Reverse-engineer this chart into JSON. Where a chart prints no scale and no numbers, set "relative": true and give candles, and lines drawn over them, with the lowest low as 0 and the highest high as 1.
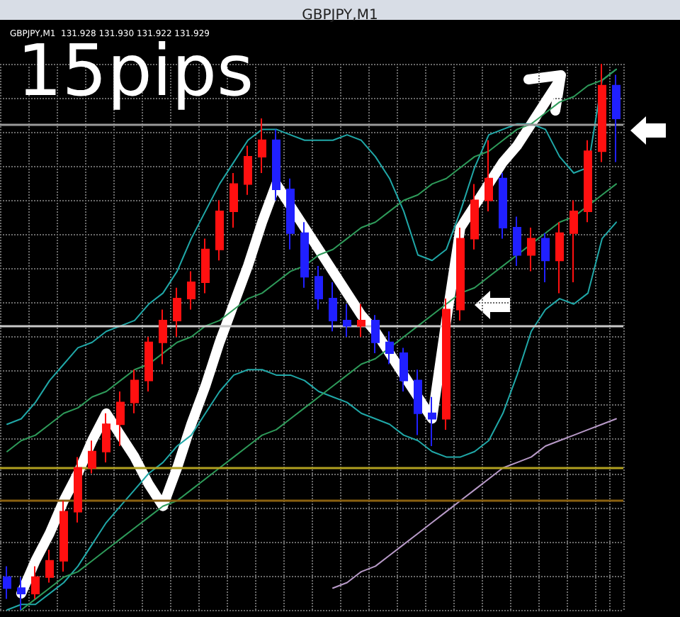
{
  "chart_data": {
    "type": "candlestick",
    "title": "GBPJPY,M1",
    "subtitle": "GBPJPY,M1  131.928 131.930 131.922 131.929",
    "annotations": [
      "15pips"
    ],
    "relative": true,
    "grid": true,
    "marker": "none",
    "categories": [
      null,
      null,
      null,
      null,
      null,
      null,
      null,
      null,
      null,
      null,
      null,
      null,
      null,
      null,
      null,
      null,
      null,
      null,
      null,
      null,
      null,
      null,
      null,
      null,
      null,
      null,
      null,
      null,
      null,
      null,
      null,
      null,
      null,
      null,
      null,
      null,
      null,
      null,
      null,
      null,
      null,
      null,
      null,
      null
    ],
    "ohlc": [
      [
        0.06,
        0.08,
        0.02,
        0.04
      ],
      [
        0.04,
        0.06,
        0,
        0.03
      ],
      [
        0.03,
        0.08,
        0.02,
        0.06
      ],
      [
        0.06,
        0.11,
        0.05,
        0.09
      ],
      [
        0.09,
        0.2,
        0.07,
        0.18
      ],
      [
        0.18,
        0.28,
        0.16,
        0.26
      ],
      [
        0.26,
        0.31,
        0.25,
        0.29
      ],
      [
        0.29,
        0.36,
        0.27,
        0.34
      ],
      [
        0.34,
        0.4,
        0.3,
        0.38
      ],
      [
        0.38,
        0.44,
        0.36,
        0.42
      ],
      [
        0.42,
        0.5,
        0.4,
        0.49
      ],
      [
        0.49,
        0.55,
        0.45,
        0.53
      ],
      [
        0.53,
        0.59,
        0.5,
        0.57
      ],
      [
        0.57,
        0.62,
        0.55,
        0.6
      ],
      [
        0.6,
        0.68,
        0.58,
        0.66
      ],
      [
        0.66,
        0.75,
        0.64,
        0.73
      ],
      [
        0.73,
        0.8,
        0.7,
        0.78
      ],
      [
        0.78,
        0.85,
        0.76,
        0.83
      ],
      [
        0.83,
        0.9,
        0.8,
        0.86
      ],
      [
        0.86,
        0.88,
        0.75,
        0.77
      ],
      [
        0.77,
        0.79,
        0.66,
        0.69
      ],
      [
        0.69,
        0.71,
        0.59,
        0.61
      ],
      [
        0.61,
        0.63,
        0.55,
        0.57
      ],
      [
        0.57,
        0.6,
        0.51,
        0.53
      ],
      [
        0.53,
        0.56,
        0.5,
        0.52
      ],
      [
        0.52,
        0.56,
        0.5,
        0.53
      ],
      [
        0.53,
        0.54,
        0.47,
        0.49
      ],
      [
        0.49,
        0.51,
        0.45,
        0.47
      ],
      [
        0.47,
        0.48,
        0.4,
        0.42
      ],
      [
        0.42,
        0.44,
        0.32,
        0.36
      ],
      [
        0.36,
        0.39,
        0.3,
        0.35
      ],
      [
        0.35,
        0.57,
        0.33,
        0.55
      ],
      [
        0.55,
        0.7,
        0.53,
        0.68
      ],
      [
        0.68,
        0.78,
        0.66,
        0.75
      ],
      [
        0.75,
        0.86,
        0.73,
        0.79
      ],
      [
        0.79,
        0.8,
        0.68,
        0.7
      ],
      [
        0.7,
        0.72,
        0.63,
        0.65
      ],
      [
        0.65,
        0.7,
        0.62,
        0.68
      ],
      [
        0.68,
        0.69,
        0.6,
        0.64
      ],
      [
        0.64,
        0.71,
        0.58,
        0.69
      ],
      [
        0.69,
        0.75,
        0.6,
        0.73
      ],
      [
        0.73,
        0.86,
        0.71,
        0.84
      ],
      [
        0.84,
        1,
        0.82,
        0.96
      ],
      [
        0.96,
        0.98,
        0.82,
        0.9
      ]
    ],
    "colors": [
      "#2020ff",
      "#2020ff",
      "#ff1010",
      "#ff1010",
      "#ff1010",
      "#ff1010",
      "#ff1010",
      "#ff1010",
      "#ff1010",
      "#ff1010",
      "#ff1010",
      "#ff1010",
      "#ff1010",
      "#ff1010",
      "#ff1010",
      "#ff1010",
      "#ff1010",
      "#ff1010",
      "#ff1010",
      "#2020ff",
      "#2020ff",
      "#2020ff",
      "#2020ff",
      "#2020ff",
      "#2020ff",
      "#ff1010",
      "#2020ff",
      "#2020ff",
      "#2020ff",
      "#2020ff",
      "#2020ff",
      "#ff1010",
      "#ff1010",
      "#ff1010",
      "#ff1010",
      "#2020ff",
      "#2020ff",
      "#ff1010",
      "#2020ff",
      "#ff1010",
      "#ff1010",
      "#ff1010",
      "#ff1010",
      "#2020ff"
    ],
    "series": [
      {
        "type": "line",
        "color": "#20a8a8",
        "values": [
          0.34,
          0.35,
          0.38,
          0.42,
          0.45,
          0.48,
          0.49,
          0.51,
          0.52,
          0.53,
          0.56,
          0.58,
          0.62,
          0.68,
          0.73,
          0.78,
          0.82,
          0.86,
          0.88,
          0.88,
          0.87,
          0.86,
          0.86,
          0.86,
          0.87,
          0.86,
          0.83,
          0.79,
          0.73,
          0.65,
          0.64,
          0.66,
          0.73,
          0.81,
          0.87,
          0.88,
          0.89,
          0.89,
          0.88,
          0.83,
          0.8,
          0.81,
          0.97,
          0.99
        ]
      },
      {
        "type": "line",
        "color": "#20a8a8",
        "values": [
          0,
          0.01,
          0.01,
          0.03,
          0.05,
          0.08,
          0.12,
          0.16,
          0.19,
          0.22,
          0.25,
          0.27,
          0.3,
          0.32,
          0.36,
          0.4,
          0.43,
          0.44,
          0.44,
          0.43,
          0.43,
          0.42,
          0.4,
          0.39,
          0.38,
          0.36,
          0.35,
          0.34,
          0.32,
          0.31,
          0.29,
          0.28,
          0.28,
          0.29,
          0.31,
          0.36,
          0.43,
          0.51,
          0.55,
          0.57,
          0.56,
          0.58,
          0.68,
          0.71
        ]
      },
      {
        "type": "line",
        "color": "#b89ac8",
        "values": [
          null,
          null,
          null,
          null,
          null,
          null,
          null,
          null,
          null,
          null,
          null,
          null,
          null,
          null,
          null,
          null,
          null,
          null,
          null,
          null,
          null,
          null,
          null,
          0.04,
          0.05,
          0.07,
          0.08,
          0.1,
          0.12,
          0.14,
          0.16,
          0.18,
          0.2,
          0.22,
          0.24,
          0.26,
          0.27,
          0.28,
          0.3,
          0.31,
          0.32,
          0.33,
          0.34,
          0.35
        ]
      },
      {
        "type": "line",
        "color": "#2e9b5a",
        "values": [
          0.29,
          0.31,
          0.32,
          0.34,
          0.36,
          0.37,
          0.39,
          0.4,
          0.42,
          0.44,
          0.45,
          0.47,
          0.49,
          0.5,
          0.52,
          0.53,
          0.55,
          0.57,
          0.58,
          0.6,
          0.62,
          0.63,
          0.65,
          0.66,
          0.68,
          0.7,
          0.71,
          0.73,
          0.75,
          0.76,
          0.78,
          0.79,
          0.81,
          0.83,
          0.84,
          0.86,
          0.88,
          0.89,
          0.91,
          0.93,
          0.94,
          0.96,
          0.97,
          0.99
        ]
      },
      {
        "type": "line",
        "color": "#2e9b5a",
        "values": [
          null,
          0,
          0.02,
          0.04,
          0.06,
          0.07,
          0.09,
          0.11,
          0.13,
          0.15,
          0.17,
          0.19,
          0.2,
          0.22,
          0.24,
          0.26,
          0.28,
          0.3,
          0.32,
          0.33,
          0.35,
          0.37,
          0.39,
          0.41,
          0.43,
          0.45,
          0.46,
          0.48,
          0.5,
          0.52,
          0.54,
          0.56,
          0.58,
          0.59,
          0.61,
          0.63,
          0.65,
          0.67,
          0.69,
          0.71,
          0.72,
          0.74,
          0.76,
          0.78
        ]
      },
      {
        "type": "line",
        "color": "#ffffff",
        "values": [
          null,
          0.03,
          0.09,
          0.14,
          0.2,
          0.25,
          0.31,
          0.36,
          0.32,
          0.28,
          0.23,
          0.19,
          0.26,
          0.34,
          0.41,
          0.49,
          0.56,
          0.63,
          0.71,
          0.78,
          0.74,
          0.7,
          0.66,
          0.62,
          0.58,
          0.54,
          0.51,
          0.47,
          0.43,
          0.39,
          0.35,
          0.53,
          0.7,
          0.74,
          0.78,
          0.82,
          0.85,
          0.89,
          0.93,
          0.97,
          null,
          null,
          null,
          null
        ]
      }
    ],
    "ref_lines": [
      {
        "axis": "y",
        "value": 0.89,
        "color": "#9a9a9a"
      },
      {
        "axis": "y",
        "value": 0.52,
        "color": "#c8c8c8"
      },
      {
        "axis": "y",
        "value": 0.26,
        "color": "#b0a020"
      },
      {
        "axis": "y",
        "value": 0.2,
        "color": "#8a6010"
      }
    ]
  }
}
